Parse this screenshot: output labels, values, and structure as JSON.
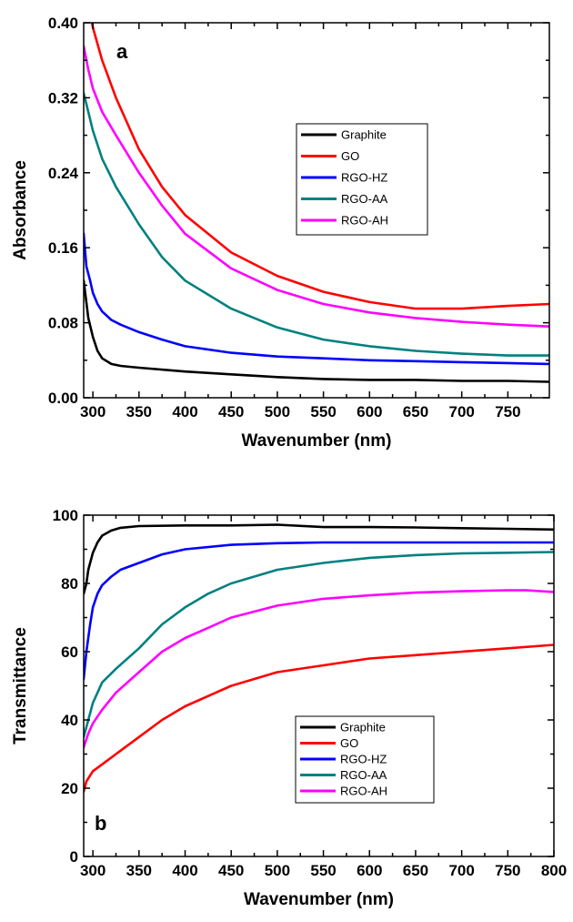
{
  "chart_data": [
    {
      "type": "line",
      "panel_label": "a",
      "xlabel": "Wavenumber (nm)",
      "ylabel": "Absorbance",
      "xlim": [
        290,
        795
      ],
      "ylim": [
        0,
        0.4
      ],
      "x_ticks": [
        300,
        350,
        400,
        450,
        500,
        550,
        600,
        650,
        700,
        750
      ],
      "y_ticks": [
        0.0,
        0.08,
        0.16,
        0.24,
        0.32,
        0.4
      ],
      "y_tick_labels": [
        "0.00",
        "0.08",
        "0.16",
        "0.24",
        "0.32",
        "0.40"
      ],
      "legend_position": "upper-center",
      "series": [
        {
          "name": "Graphite",
          "color": "#000000",
          "x": [
            290,
            295,
            300,
            305,
            310,
            320,
            330,
            350,
            400,
            450,
            500,
            550,
            600,
            650,
            700,
            750,
            795
          ],
          "y": [
            0.125,
            0.085,
            0.065,
            0.05,
            0.042,
            0.036,
            0.034,
            0.032,
            0.028,
            0.025,
            0.022,
            0.02,
            0.019,
            0.019,
            0.018,
            0.018,
            0.017
          ]
        },
        {
          "name": "GO",
          "color": "#ff0000",
          "x": [
            290,
            295,
            300,
            310,
            325,
            350,
            375,
            400,
            450,
            500,
            550,
            600,
            650,
            700,
            750,
            795
          ],
          "y": [
            0.44,
            0.42,
            0.395,
            0.36,
            0.32,
            0.265,
            0.225,
            0.195,
            0.155,
            0.13,
            0.113,
            0.102,
            0.095,
            0.095,
            0.098,
            0.1
          ]
        },
        {
          "name": "RGO-HZ",
          "color": "#0000ff",
          "x": [
            290,
            293,
            297,
            300,
            305,
            310,
            320,
            330,
            350,
            375,
            400,
            450,
            500,
            550,
            600,
            650,
            700,
            750,
            795
          ],
          "y": [
            0.175,
            0.14,
            0.125,
            0.112,
            0.1,
            0.092,
            0.083,
            0.078,
            0.07,
            0.062,
            0.055,
            0.048,
            0.044,
            0.042,
            0.04,
            0.039,
            0.038,
            0.037,
            0.036
          ]
        },
        {
          "name": "RGO-AA",
          "color": "#008080",
          "x": [
            290,
            295,
            300,
            310,
            325,
            350,
            375,
            400,
            450,
            500,
            550,
            600,
            650,
            700,
            750,
            795
          ],
          "y": [
            0.325,
            0.305,
            0.285,
            0.255,
            0.225,
            0.185,
            0.15,
            0.125,
            0.095,
            0.075,
            0.062,
            0.055,
            0.05,
            0.047,
            0.045,
            0.045
          ]
        },
        {
          "name": "RGO-AH",
          "color": "#ff00ff",
          "x": [
            290,
            295,
            300,
            310,
            325,
            350,
            375,
            400,
            450,
            500,
            550,
            600,
            650,
            700,
            750,
            795
          ],
          "y": [
            0.375,
            0.35,
            0.33,
            0.305,
            0.28,
            0.24,
            0.205,
            0.175,
            0.138,
            0.115,
            0.1,
            0.091,
            0.085,
            0.081,
            0.078,
            0.076
          ]
        }
      ]
    },
    {
      "type": "line",
      "panel_label": "b",
      "xlabel": "Wavenumber (nm)",
      "ylabel": "Transmittance",
      "xlim": [
        290,
        800
      ],
      "ylim": [
        0,
        100
      ],
      "x_ticks": [
        300,
        350,
        400,
        450,
        500,
        550,
        600,
        650,
        700,
        750,
        800
      ],
      "y_ticks": [
        0,
        20,
        40,
        60,
        80,
        100
      ],
      "y_tick_labels": [
        "0",
        "20",
        "40",
        "60",
        "80",
        "100"
      ],
      "legend_position": "lower-center",
      "series": [
        {
          "name": "Graphite",
          "color": "#000000",
          "x": [
            290,
            293,
            295,
            300,
            305,
            310,
            320,
            330,
            350,
            400,
            450,
            500,
            550,
            600,
            650,
            700,
            750,
            800
          ],
          "y": [
            77,
            80,
            84,
            89,
            92,
            94,
            95.5,
            96.3,
            96.8,
            97,
            97,
            97.2,
            96.5,
            96.5,
            96.4,
            96.2,
            96,
            95.8
          ]
        },
        {
          "name": "GO",
          "color": "#ff0000",
          "x": [
            290,
            293,
            300,
            310,
            325,
            350,
            375,
            400,
            450,
            500,
            550,
            600,
            650,
            700,
            750,
            800
          ],
          "y": [
            19,
            22,
            25,
            27,
            30,
            35,
            40,
            44,
            50,
            54,
            56,
            58,
            59,
            60,
            61,
            62
          ]
        },
        {
          "name": "RGO-HZ",
          "color": "#0000ff",
          "x": [
            290,
            293,
            297,
            300,
            305,
            310,
            320,
            330,
            350,
            375,
            400,
            450,
            500,
            550,
            600,
            650,
            700,
            750,
            800
          ],
          "y": [
            52,
            60,
            68,
            73,
            77,
            79.5,
            82,
            84,
            86,
            88.5,
            90,
            91.3,
            91.8,
            92,
            92,
            92,
            92,
            92,
            92
          ]
        },
        {
          "name": "RGO-AA",
          "color": "#008080",
          "x": [
            290,
            295,
            300,
            310,
            325,
            350,
            375,
            400,
            425,
            450,
            500,
            550,
            600,
            650,
            700,
            750,
            800
          ],
          "y": [
            35,
            40,
            45,
            51,
            55,
            61,
            68,
            73,
            77,
            80,
            84,
            86,
            87.5,
            88.3,
            88.8,
            89,
            89.2
          ]
        },
        {
          "name": "RGO-AH",
          "color": "#ff00ff",
          "x": [
            290,
            295,
            300,
            310,
            325,
            350,
            375,
            400,
            425,
            450,
            500,
            550,
            600,
            650,
            700,
            750,
            770,
            800
          ],
          "y": [
            32,
            36,
            39,
            43,
            48,
            54,
            60,
            64,
            67,
            70,
            73.5,
            75.5,
            76.5,
            77.3,
            77.7,
            78,
            78,
            77.5
          ]
        }
      ]
    }
  ]
}
